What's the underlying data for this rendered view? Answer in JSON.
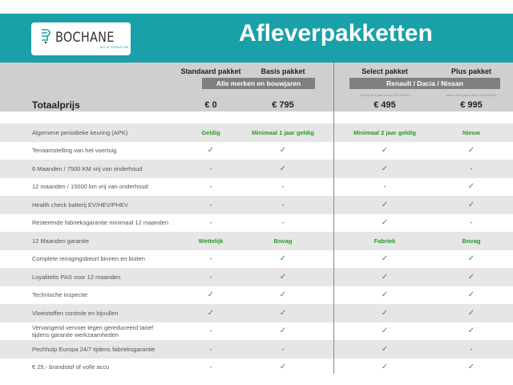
{
  "logo": {
    "name": "BOCHANE",
    "tagline": "ALS JE VOORUIT WIL"
  },
  "title": "Afleverpakketten",
  "colors": {
    "brand": "#1aa0a8",
    "check": "#2a9a2a"
  },
  "packages": [
    {
      "name": "Standaard pakket",
      "price": "€ 0",
      "note": ""
    },
    {
      "name": "Basis pakket",
      "price": "€ 795",
      "note": ""
    },
    {
      "name": "Select pakket",
      "price": "€ 495",
      "note": "Auto's tot 1 jaar oud en 20.000 km"
    },
    {
      "name": "Plus pakket",
      "price": "€ 995",
      "note": "Auto's tot 5 jaar oud en 100.000 km"
    }
  ],
  "groups": [
    "Alle merken en bouwjaren",
    "Renault / Dacia / Nissan"
  ],
  "total_label": "Totaalprijs",
  "rows": [
    {
      "label": "Algemene periodieke keuring (APK)",
      "values": [
        "Geldig",
        "Minimaal 1 jaar geldig",
        "Minimaal 2 jaar geldig",
        "Nieuw"
      ]
    },
    {
      "label": "Tenaamstelling van het voertuig",
      "values": [
        "✓",
        "✓",
        "✓",
        "✓"
      ]
    },
    {
      "label": "6 Maanden / 7500 KM vrij van onderhoud",
      "values": [
        "-",
        "✓",
        "✓",
        "-"
      ]
    },
    {
      "label": "12 maanden / 15000 km vrij van onderhoud",
      "values": [
        "-",
        "-",
        "-",
        "✓"
      ]
    },
    {
      "label": "Health check batterij EV/HEV/PHEV",
      "values": [
        "-",
        "-",
        "✓",
        "✓"
      ]
    },
    {
      "label": "Resterende fabrieksgarantie minimaal 12 maanden",
      "values": [
        "-",
        "-",
        "✓",
        "-"
      ]
    },
    {
      "label": "12 Maanden  garantie",
      "values": [
        "Wettelijk",
        "Bovag",
        "Fabriek",
        "Bovag"
      ]
    },
    {
      "label": "Complete reinigingsbeurt binnen en buiten",
      "values": [
        "-",
        "✓",
        "✓",
        "✓"
      ]
    },
    {
      "label": "Loyaliteits PAS voor 12 maanden",
      "values": [
        "-",
        "✓",
        "✓",
        "✓"
      ]
    },
    {
      "label": "Technische inspectie",
      "values": [
        "✓",
        "✓",
        "✓",
        "✓"
      ]
    },
    {
      "label": "Vloeistoffen controle en bijvullen",
      "values": [
        "✓",
        "✓",
        "✓",
        "✓"
      ]
    },
    {
      "label": "Vervangend vervoer tegen gereduceerd tarief tijdens garantie werkzaamheden",
      "values": [
        "-",
        "✓",
        "✓",
        "✓"
      ]
    },
    {
      "label": "Pechhulp Europa 24/7 tijdens fabrieksgarantie",
      "values": [
        "-",
        "-",
        "✓",
        "-"
      ]
    },
    {
      "label": "€ 25,- brandstof of  volle accu",
      "values": [
        "-",
        "✓",
        "✓",
        "✓"
      ]
    }
  ]
}
